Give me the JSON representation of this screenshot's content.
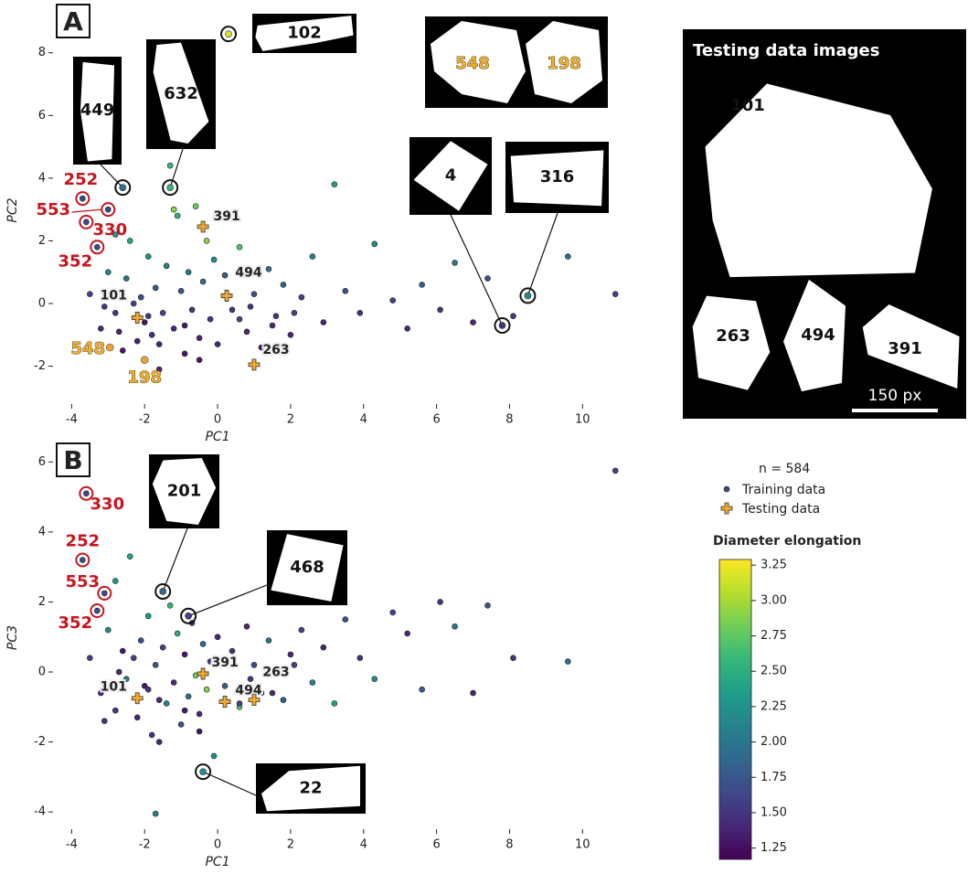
{
  "chart_data": [
    {
      "type": "scatter",
      "panel": "A",
      "xlabel": "PC1",
      "ylabel": "PC2",
      "xlim": [
        -4.46,
        11.32
      ],
      "ylim": [
        -3.15,
        9.1
      ],
      "xticks": [
        -4,
        -2,
        0,
        2,
        4,
        6,
        8,
        10
      ],
      "yticks": [
        -2,
        0,
        2,
        4,
        6,
        8
      ],
      "colormap": "viridis",
      "series": [
        {
          "name": "Training data",
          "x": [
            -3.5,
            -3.2,
            -3.0,
            -2.8,
            -2.6,
            -2.5,
            -2.4,
            -2.2,
            -2.1,
            -2.0,
            -1.9,
            -1.8,
            -1.7,
            -1.6,
            -1.5,
            -1.4,
            -1.3,
            -1.2,
            -1.1,
            -1.0,
            -0.9,
            -0.8,
            -0.7,
            -0.6,
            -0.5,
            -0.4,
            -0.3,
            -0.2,
            -0.1,
            0.0,
            0.2,
            0.4,
            0.6,
            0.8,
            1.0,
            1.2,
            1.4,
            1.6,
            1.8,
            2.0,
            2.3,
            2.6,
            2.9,
            3.2,
            3.5,
            3.9,
            4.3,
            4.8,
            5.2,
            5.6,
            6.1,
            6.5,
            7.0,
            7.4,
            8.1,
            9.6,
            10.9,
            -1.2,
            -2.8,
            0.6,
            -2.7,
            -1.9,
            -0.9,
            -2.3,
            -1.6,
            0.9,
            1.5,
            2.1,
            -3.1,
            -0.5
          ],
          "y": [
            0.3,
            -0.8,
            1.0,
            -0.3,
            -1.5,
            0.8,
            2.0,
            -1.2,
            0.2,
            -0.6,
            1.5,
            -1.0,
            0.5,
            -2.1,
            -0.3,
            1.2,
            4.4,
            -0.8,
            2.8,
            0.4,
            -1.6,
            1.0,
            -0.2,
            3.1,
            -1.1,
            0.7,
            2.0,
            -0.5,
            1.4,
            -1.3,
            0.9,
            -0.2,
            1.8,
            -0.9,
            0.3,
            -1.4,
            1.1,
            -0.4,
            0.6,
            -1.0,
            0.2,
            1.5,
            -0.6,
            3.8,
            0.4,
            -0.3,
            1.9,
            0.1,
            -0.8,
            0.6,
            -0.2,
            1.3,
            -0.6,
            0.8,
            -0.4,
            1.5,
            0.3,
            3.0,
            2.2,
            -0.5,
            -0.9,
            -0.4,
            -0.7,
            0.0,
            -1.3,
            -0.1,
            -0.7,
            -0.3,
            -0.1,
            -1.8
          ],
          "c": [
            1.6,
            1.4,
            2.2,
            1.5,
            1.3,
            2.0,
            2.4,
            1.4,
            1.7,
            1.3,
            2.3,
            1.5,
            1.8,
            1.4,
            1.6,
            2.1,
            2.6,
            1.4,
            2.5,
            1.7,
            1.3,
            2.0,
            1.5,
            2.8,
            1.4,
            1.9,
            2.9,
            1.5,
            2.2,
            1.4,
            1.8,
            1.5,
            2.7,
            1.4,
            1.7,
            1.3,
            2.0,
            1.5,
            1.8,
            1.4,
            1.6,
            2.1,
            1.4,
            2.4,
            1.7,
            1.5,
            2.2,
            1.6,
            1.4,
            1.8,
            1.5,
            2.0,
            1.4,
            1.7,
            1.5,
            1.9,
            1.6,
            2.9,
            2.3,
            1.6,
            1.4,
            1.5,
            1.3,
            1.6,
            1.4,
            1.5,
            1.4,
            1.6,
            1.5,
            1.3
          ]
        },
        {
          "name": "Testing data",
          "labels": [
            "391",
            "494",
            "101",
            "263"
          ],
          "x": [
            -0.4,
            0.25,
            -2.2,
            1.0
          ],
          "y": [
            2.45,
            0.25,
            -0.45,
            -1.95
          ]
        }
      ],
      "highlighted": [
        {
          "label": "102",
          "x": 0.3,
          "y": 8.6,
          "c": 3.2
        },
        {
          "label": "449",
          "x": -2.6,
          "y": 3.7,
          "c": 2.0
        },
        {
          "label": "632",
          "x": -1.3,
          "y": 3.7,
          "c": 2.6
        },
        {
          "label": "4",
          "x": 7.8,
          "y": -0.7,
          "c": 1.5
        },
        {
          "label": "316",
          "x": 8.5,
          "y": 0.25,
          "c": 2.2
        }
      ],
      "excluded": [
        {
          "label": "252",
          "x": -3.7,
          "y": 3.35
        },
        {
          "label": "553",
          "x": -3.0,
          "y": 3.0
        },
        {
          "label": "330",
          "x": -3.6,
          "y": 2.6
        },
        {
          "label": "352",
          "x": -3.3,
          "y": 1.8
        }
      ],
      "orange": [
        {
          "label": "548",
          "x": -2.95,
          "y": -1.4
        },
        {
          "label": "198",
          "x": -2.0,
          "y": -1.8
        }
      ]
    },
    {
      "type": "scatter",
      "panel": "B",
      "xlabel": "PC1",
      "ylabel": "PC3",
      "xlim": [
        -4.46,
        11.32
      ],
      "ylim": [
        -4.44,
        6.4
      ],
      "xticks": [
        -4,
        -2,
        0,
        2,
        4,
        6,
        8,
        10
      ],
      "yticks": [
        -4,
        -2,
        0,
        2,
        4,
        6
      ],
      "colormap": "viridis",
      "series": [
        {
          "x": [
            -3.5,
            -3.2,
            -3.0,
            -2.8,
            -2.6,
            -2.5,
            -2.4,
            -2.2,
            -2.1,
            -2.0,
            -1.9,
            -1.8,
            -1.7,
            -1.6,
            -1.5,
            -1.4,
            -1.3,
            -1.2,
            -1.1,
            -1.0,
            -0.9,
            -0.8,
            -0.7,
            -0.6,
            -0.5,
            -0.4,
            -0.3,
            -0.2,
            -0.1,
            0.0,
            0.2,
            0.4,
            0.6,
            0.8,
            1.0,
            1.2,
            1.4,
            1.6,
            1.8,
            2.0,
            2.3,
            2.6,
            2.9,
            3.2,
            3.5,
            3.9,
            4.3,
            4.8,
            5.2,
            5.6,
            6.1,
            6.5,
            7.0,
            7.4,
            8.1,
            9.6,
            10.9,
            -1.7,
            -2.8,
            0.6,
            -2.7,
            -1.9,
            -0.9,
            -2.3,
            -1.6,
            0.9,
            1.5,
            2.1,
            -3.1,
            -0.5
          ],
          "y": [
            0.4,
            -0.6,
            1.2,
            -1.1,
            0.6,
            -0.2,
            3.3,
            -1.3,
            0.9,
            -0.4,
            1.6,
            -1.8,
            0.2,
            -2.0,
            0.7,
            -0.9,
            1.9,
            -0.3,
            1.1,
            -1.5,
            0.5,
            -0.7,
            1.4,
            -0.1,
            -1.2,
            0.8,
            -0.5,
            0.3,
            -2.4,
            1.0,
            -0.4,
            0.6,
            -1.0,
            1.3,
            0.2,
            -0.6,
            0.9,
            0.1,
            -0.8,
            0.5,
            1.2,
            -0.3,
            0.7,
            -0.9,
            1.5,
            0.4,
            -0.2,
            1.7,
            1.1,
            -0.5,
            2.0,
            1.3,
            -0.6,
            1.9,
            0.4,
            0.3,
            5.75,
            -4.05,
            2.6,
            -0.9,
            0.0,
            -0.5,
            -1.1,
            0.4,
            -0.8,
            -0.2,
            -0.6,
            0.2,
            -1.4,
            -1.7
          ],
          "c": [
            1.6,
            1.4,
            2.2,
            1.5,
            1.3,
            2.0,
            2.4,
            1.4,
            1.7,
            1.3,
            2.3,
            1.5,
            1.8,
            1.4,
            1.6,
            2.1,
            2.6,
            1.4,
            2.5,
            1.7,
            1.3,
            2.0,
            1.5,
            2.8,
            1.4,
            1.9,
            2.9,
            1.5,
            2.2,
            1.4,
            1.8,
            1.5,
            2.7,
            1.4,
            1.7,
            1.3,
            2.0,
            1.5,
            1.8,
            1.4,
            1.6,
            2.1,
            1.4,
            2.4,
            1.7,
            1.5,
            2.2,
            1.6,
            1.4,
            1.8,
            1.5,
            2.0,
            1.4,
            1.7,
            1.5,
            1.9,
            1.6,
            2.1,
            2.3,
            1.6,
            1.4,
            1.5,
            1.3,
            1.6,
            1.4,
            1.5,
            1.4,
            1.6,
            1.5,
            1.3
          ]
        },
        {
          "labels": [
            "391",
            "494",
            "263",
            "101"
          ],
          "x": [
            -0.4,
            0.2,
            1.0,
            -2.2
          ],
          "y": [
            -0.05,
            -0.85,
            -0.8,
            -0.75
          ]
        }
      ],
      "highlighted": [
        {
          "label": "201",
          "x": -1.5,
          "y": 2.3,
          "c": 1.9
        },
        {
          "label": "468",
          "x": -0.8,
          "y": 1.6,
          "c": 1.6
        },
        {
          "label": "22",
          "x": -0.4,
          "y": -2.85,
          "c": 2.2
        }
      ],
      "excluded": [
        {
          "label": "330",
          "x": -3.6,
          "y": 5.1
        },
        {
          "label": "252",
          "x": -3.7,
          "y": 3.2
        },
        {
          "label": "553",
          "x": -3.1,
          "y": 2.25
        },
        {
          "label": "352",
          "x": -3.3,
          "y": 1.75
        }
      ]
    }
  ],
  "legend": {
    "n_label": "n = 584"
  },
  "colorbar": {
    "title": "Diameter elongation",
    "clim": [
      1.17,
      3.29
    ],
    "ticks": [
      1.25,
      {
        "value": 1.5,
        "label": "1.50"
      },
      1.75,
      {
        "value": 2.0,
        "label": "2.00"
      },
      2.25,
      {
        "value": 2.5,
        "label": "2.50"
      },
      2.75,
      {
        "value": 3.0,
        "label": "3.00"
      },
      3.25
    ]
  },
  "testing_images": {
    "title": "Testing data images",
    "labels": [
      "101",
      "263",
      "494",
      "391"
    ],
    "scale_bar": "150 px"
  }
}
